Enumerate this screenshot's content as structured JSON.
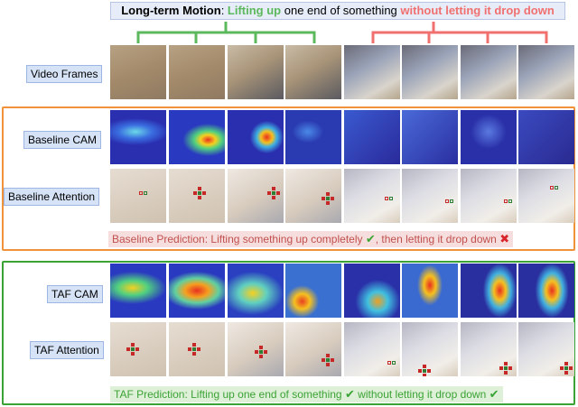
{
  "title": {
    "lead": "Long-term Motion",
    "colon": ": ",
    "green_phrase": "Lifting up",
    "middle": " one end of something ",
    "red_phrase": "without letting it drop down"
  },
  "row_labels": {
    "video_frames": "Video Frames",
    "baseline_cam": "Baseline CAM",
    "baseline_attention": "Baseline Attention",
    "taf_cam": "TAF CAM",
    "taf_attention": "TAF Attention"
  },
  "baseline_prediction": {
    "part1": "Baseline Prediction: Lifting something up completely",
    "check": "✔",
    "part2": ", then letting it drop down",
    "cross": "✖"
  },
  "taf_prediction": {
    "part1": "TAF Prediction: Lifting up one end of something",
    "check1": "✔",
    "part2": " without letting it drop down",
    "check2": "✔"
  },
  "colors": {
    "green": "#5cb85c",
    "red": "#f07070",
    "orange_box": "#f0923a",
    "green_box": "#3aa335",
    "label_bg": "#d6e3f7",
    "baseline_pred_bg": "#f7dede",
    "taf_pred_bg": "#dff0d8"
  },
  "frame_count": 8
}
